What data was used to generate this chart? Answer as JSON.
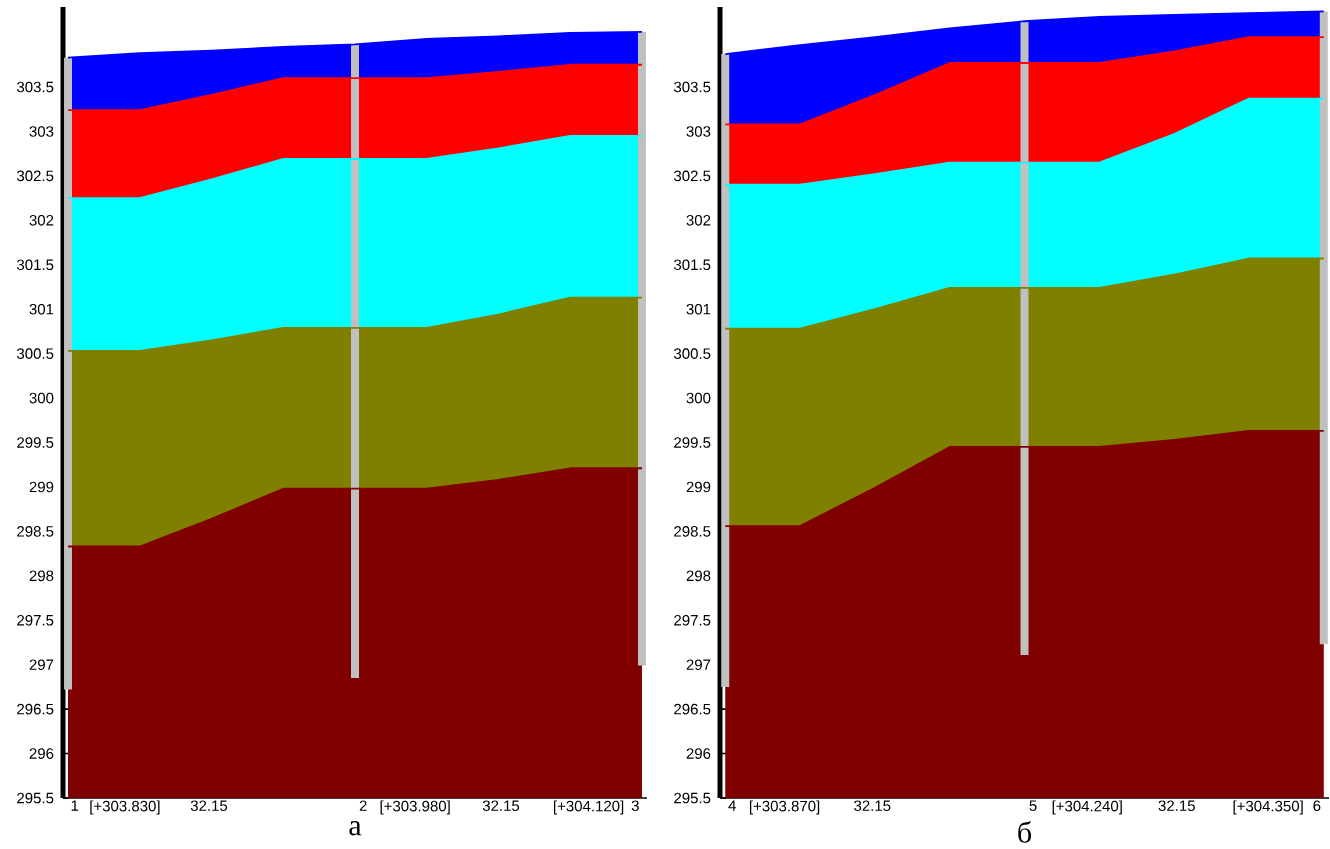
{
  "chart_data": [
    {
      "type": "area",
      "title": "а",
      "categories": [
        null,
        null,
        null,
        null,
        null,
        null,
        null,
        null,
        null
      ],
      "ylim": [
        295.5,
        304.4
      ],
      "yticks": [
        295.5,
        296,
        296.5,
        297,
        297.5,
        298,
        298.5,
        299,
        299.5,
        300,
        300.5,
        301,
        301.5,
        302,
        302.5,
        303,
        303.5
      ],
      "tick_labels": "y",
      "series": [
        {
          "color": "#0000ff",
          "values": [
            303.83,
            303.88,
            303.91,
            303.95,
            303.98,
            304.04,
            304.07,
            304.11,
            304.12
          ]
        },
        {
          "color": "#ff0000",
          "values": [
            303.24,
            303.24,
            303.41,
            303.6,
            303.6,
            303.6,
            303.67,
            303.75,
            303.75
          ]
        },
        {
          "color": "#00ffff",
          "values": [
            302.25,
            302.25,
            302.46,
            302.69,
            302.69,
            302.69,
            302.81,
            302.95,
            302.95
          ]
        },
        {
          "color": "#808000",
          "values": [
            300.53,
            300.53,
            300.65,
            300.79,
            300.79,
            300.79,
            300.94,
            301.13,
            301.13
          ]
        },
        {
          "color": "#800000",
          "values": [
            298.33,
            298.33,
            298.64,
            298.98,
            298.98,
            298.98,
            299.08,
            299.21,
            299.21
          ]
        },
        {
          "type": "bar",
          "color": "#c0c0c0",
          "base": [
            296.72,
            null,
            null,
            null,
            296.85,
            null,
            null,
            null,
            296.99
          ],
          "values": [
            7.11,
            null,
            null,
            null,
            7.13,
            null,
            null,
            null,
            7.13
          ]
        }
      ],
      "annotations": [
        "1",
        "[+303.830]",
        "32.15",
        "2",
        "[+303.980]",
        "32.15",
        "[+304.120]",
        "3"
      ]
    },
    {
      "type": "area",
      "title": "б",
      "categories": [
        null,
        null,
        null,
        null,
        null,
        null,
        null,
        null,
        null
      ],
      "ylim": [
        295.5,
        304.4
      ],
      "yticks": [
        295.5,
        296,
        296.5,
        297,
        297.5,
        298,
        298.5,
        299,
        299.5,
        300,
        300.5,
        301,
        301.5,
        302,
        302.5,
        303,
        303.5
      ],
      "tick_labels": "y",
      "series": [
        {
          "color": "#0000ff",
          "values": [
            303.87,
            303.97,
            304.06,
            304.16,
            304.24,
            304.29,
            304.31,
            304.33,
            304.35
          ]
        },
        {
          "color": "#ff0000",
          "values": [
            303.08,
            303.08,
            303.41,
            303.77,
            303.77,
            303.77,
            303.9,
            304.06,
            304.06
          ]
        },
        {
          "color": "#00ffff",
          "values": [
            302.4,
            302.4,
            302.52,
            302.65,
            302.65,
            302.65,
            302.97,
            303.37,
            303.37
          ]
        },
        {
          "color": "#808000",
          "values": [
            300.78,
            300.78,
            301.0,
            301.24,
            301.24,
            301.24,
            301.39,
            301.57,
            301.57
          ]
        },
        {
          "color": "#800000",
          "values": [
            298.56,
            298.56,
            298.99,
            299.45,
            299.45,
            299.45,
            299.53,
            299.63,
            299.63
          ]
        },
        {
          "type": "bar",
          "color": "#c0c0c0",
          "base": [
            296.75,
            null,
            null,
            null,
            297.11,
            null,
            null,
            null,
            297.23
          ],
          "values": [
            7.12,
            null,
            null,
            null,
            7.13,
            null,
            null,
            null,
            7.12
          ]
        }
      ],
      "annotations": [
        "4",
        "[+303.870]",
        "32.15",
        "5",
        "[+304.240]",
        "32.15",
        "[+304.350]",
        "6"
      ]
    }
  ]
}
